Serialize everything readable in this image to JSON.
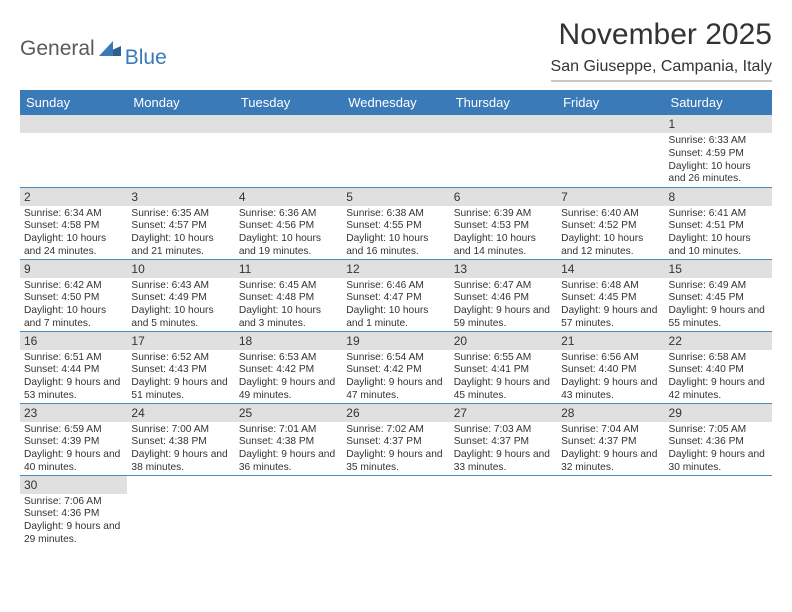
{
  "logo": {
    "text1": "General",
    "text2": "Blue",
    "color_general": "#5a5a5a",
    "color_blue": "#3a7ab8",
    "triangle_color": "#2d5f8f"
  },
  "title": "November 2025",
  "location": "San Giuseppe, Campania, Italy",
  "colors": {
    "header_bg": "#3a7ab8",
    "header_text": "#ffffff",
    "daynum_bg": "#e0e0e0",
    "cell_border": "#4a8ac0",
    "text": "#333333",
    "title_underline": "#c8c8c8"
  },
  "fonts": {
    "title_size": 30,
    "location_size": 16,
    "dow_size": 13,
    "daynum_size": 12,
    "info_size": 10.2
  },
  "dow": [
    "Sunday",
    "Monday",
    "Tuesday",
    "Wednesday",
    "Thursday",
    "Friday",
    "Saturday"
  ],
  "weeks": [
    [
      {
        "day": "",
        "sunrise": "",
        "sunset": "",
        "daylight": ""
      },
      {
        "day": "",
        "sunrise": "",
        "sunset": "",
        "daylight": ""
      },
      {
        "day": "",
        "sunrise": "",
        "sunset": "",
        "daylight": ""
      },
      {
        "day": "",
        "sunrise": "",
        "sunset": "",
        "daylight": ""
      },
      {
        "day": "",
        "sunrise": "",
        "sunset": "",
        "daylight": ""
      },
      {
        "day": "",
        "sunrise": "",
        "sunset": "",
        "daylight": ""
      },
      {
        "day": "1",
        "sunrise": "Sunrise: 6:33 AM",
        "sunset": "Sunset: 4:59 PM",
        "daylight": "Daylight: 10 hours and 26 minutes."
      }
    ],
    [
      {
        "day": "2",
        "sunrise": "Sunrise: 6:34 AM",
        "sunset": "Sunset: 4:58 PM",
        "daylight": "Daylight: 10 hours and 24 minutes."
      },
      {
        "day": "3",
        "sunrise": "Sunrise: 6:35 AM",
        "sunset": "Sunset: 4:57 PM",
        "daylight": "Daylight: 10 hours and 21 minutes."
      },
      {
        "day": "4",
        "sunrise": "Sunrise: 6:36 AM",
        "sunset": "Sunset: 4:56 PM",
        "daylight": "Daylight: 10 hours and 19 minutes."
      },
      {
        "day": "5",
        "sunrise": "Sunrise: 6:38 AM",
        "sunset": "Sunset: 4:55 PM",
        "daylight": "Daylight: 10 hours and 16 minutes."
      },
      {
        "day": "6",
        "sunrise": "Sunrise: 6:39 AM",
        "sunset": "Sunset: 4:53 PM",
        "daylight": "Daylight: 10 hours and 14 minutes."
      },
      {
        "day": "7",
        "sunrise": "Sunrise: 6:40 AM",
        "sunset": "Sunset: 4:52 PM",
        "daylight": "Daylight: 10 hours and 12 minutes."
      },
      {
        "day": "8",
        "sunrise": "Sunrise: 6:41 AM",
        "sunset": "Sunset: 4:51 PM",
        "daylight": "Daylight: 10 hours and 10 minutes."
      }
    ],
    [
      {
        "day": "9",
        "sunrise": "Sunrise: 6:42 AM",
        "sunset": "Sunset: 4:50 PM",
        "daylight": "Daylight: 10 hours and 7 minutes."
      },
      {
        "day": "10",
        "sunrise": "Sunrise: 6:43 AM",
        "sunset": "Sunset: 4:49 PM",
        "daylight": "Daylight: 10 hours and 5 minutes."
      },
      {
        "day": "11",
        "sunrise": "Sunrise: 6:45 AM",
        "sunset": "Sunset: 4:48 PM",
        "daylight": "Daylight: 10 hours and 3 minutes."
      },
      {
        "day": "12",
        "sunrise": "Sunrise: 6:46 AM",
        "sunset": "Sunset: 4:47 PM",
        "daylight": "Daylight: 10 hours and 1 minute."
      },
      {
        "day": "13",
        "sunrise": "Sunrise: 6:47 AM",
        "sunset": "Sunset: 4:46 PM",
        "daylight": "Daylight: 9 hours and 59 minutes."
      },
      {
        "day": "14",
        "sunrise": "Sunrise: 6:48 AM",
        "sunset": "Sunset: 4:45 PM",
        "daylight": "Daylight: 9 hours and 57 minutes."
      },
      {
        "day": "15",
        "sunrise": "Sunrise: 6:49 AM",
        "sunset": "Sunset: 4:45 PM",
        "daylight": "Daylight: 9 hours and 55 minutes."
      }
    ],
    [
      {
        "day": "16",
        "sunrise": "Sunrise: 6:51 AM",
        "sunset": "Sunset: 4:44 PM",
        "daylight": "Daylight: 9 hours and 53 minutes."
      },
      {
        "day": "17",
        "sunrise": "Sunrise: 6:52 AM",
        "sunset": "Sunset: 4:43 PM",
        "daylight": "Daylight: 9 hours and 51 minutes."
      },
      {
        "day": "18",
        "sunrise": "Sunrise: 6:53 AM",
        "sunset": "Sunset: 4:42 PM",
        "daylight": "Daylight: 9 hours and 49 minutes."
      },
      {
        "day": "19",
        "sunrise": "Sunrise: 6:54 AM",
        "sunset": "Sunset: 4:42 PM",
        "daylight": "Daylight: 9 hours and 47 minutes."
      },
      {
        "day": "20",
        "sunrise": "Sunrise: 6:55 AM",
        "sunset": "Sunset: 4:41 PM",
        "daylight": "Daylight: 9 hours and 45 minutes."
      },
      {
        "day": "21",
        "sunrise": "Sunrise: 6:56 AM",
        "sunset": "Sunset: 4:40 PM",
        "daylight": "Daylight: 9 hours and 43 minutes."
      },
      {
        "day": "22",
        "sunrise": "Sunrise: 6:58 AM",
        "sunset": "Sunset: 4:40 PM",
        "daylight": "Daylight: 9 hours and 42 minutes."
      }
    ],
    [
      {
        "day": "23",
        "sunrise": "Sunrise: 6:59 AM",
        "sunset": "Sunset: 4:39 PM",
        "daylight": "Daylight: 9 hours and 40 minutes."
      },
      {
        "day": "24",
        "sunrise": "Sunrise: 7:00 AM",
        "sunset": "Sunset: 4:38 PM",
        "daylight": "Daylight: 9 hours and 38 minutes."
      },
      {
        "day": "25",
        "sunrise": "Sunrise: 7:01 AM",
        "sunset": "Sunset: 4:38 PM",
        "daylight": "Daylight: 9 hours and 36 minutes."
      },
      {
        "day": "26",
        "sunrise": "Sunrise: 7:02 AM",
        "sunset": "Sunset: 4:37 PM",
        "daylight": "Daylight: 9 hours and 35 minutes."
      },
      {
        "day": "27",
        "sunrise": "Sunrise: 7:03 AM",
        "sunset": "Sunset: 4:37 PM",
        "daylight": "Daylight: 9 hours and 33 minutes."
      },
      {
        "day": "28",
        "sunrise": "Sunrise: 7:04 AM",
        "sunset": "Sunset: 4:37 PM",
        "daylight": "Daylight: 9 hours and 32 minutes."
      },
      {
        "day": "29",
        "sunrise": "Sunrise: 7:05 AM",
        "sunset": "Sunset: 4:36 PM",
        "daylight": "Daylight: 9 hours and 30 minutes."
      }
    ],
    [
      {
        "day": "30",
        "sunrise": "Sunrise: 7:06 AM",
        "sunset": "Sunset: 4:36 PM",
        "daylight": "Daylight: 9 hours and 29 minutes."
      },
      {
        "day": "",
        "sunrise": "",
        "sunset": "",
        "daylight": ""
      },
      {
        "day": "",
        "sunrise": "",
        "sunset": "",
        "daylight": ""
      },
      {
        "day": "",
        "sunrise": "",
        "sunset": "",
        "daylight": ""
      },
      {
        "day": "",
        "sunrise": "",
        "sunset": "",
        "daylight": ""
      },
      {
        "day": "",
        "sunrise": "",
        "sunset": "",
        "daylight": ""
      },
      {
        "day": "",
        "sunrise": "",
        "sunset": "",
        "daylight": ""
      }
    ]
  ]
}
